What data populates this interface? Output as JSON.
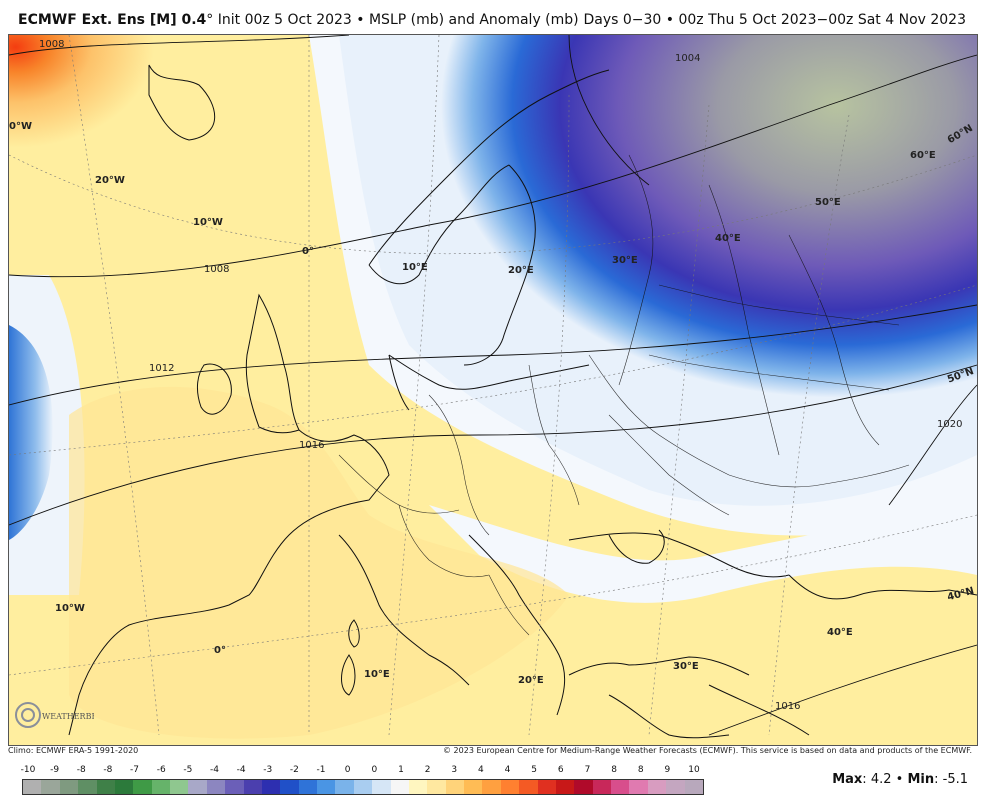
{
  "header": {
    "title_bold": "ECMWF Ext. Ens [M] 0.4",
    "title_rest": "° Init 00z 5 Oct 2023 • MSLP (mb) and Anomaly (mb)",
    "right": "Days 0−30 • 00z Thu 5 Oct 2023−00z Sat 4 Nov 2023"
  },
  "map": {
    "lon_labels": [
      "0°W",
      "20°W",
      "10°W",
      "0°",
      "10°E",
      "20°E",
      "30°E",
      "40°E",
      "50°E",
      "60°E",
      "60°N",
      "50°N",
      "40°N",
      "10°W",
      "0°",
      "10°E",
      "20°E",
      "30°E",
      "40°E"
    ],
    "contour_labels": [
      "1008",
      "1004",
      "1008",
      "1012",
      "1016",
      "1020",
      "1016"
    ]
  },
  "footer": {
    "climo": "Climo: ECMWF ERA-5 1991-2020",
    "copyright": "© 2023 European Centre for Medium-Range Weather Forecasts (ECMWF). This service is based on data and products of the ECMWF.",
    "logo_text": "WEATHERBELL",
    "max_label": "Max",
    "max_value": "4.2",
    "min_label": "Min",
    "min_value": "-5.1",
    "sep": "•"
  },
  "colorbar": {
    "ticks": [
      "-10",
      "-9",
      "-8",
      "-8",
      "-7",
      "-6",
      "-5",
      "-4",
      "-4",
      "-3",
      "-2",
      "-1",
      "0",
      "0",
      "1",
      "2",
      "3",
      "4",
      "4",
      "5",
      "6",
      "7",
      "8",
      "8",
      "9",
      "10"
    ],
    "colors": [
      "#b0b0b0",
      "#9aa69a",
      "#7f9a80",
      "#5f8f64",
      "#3f8048",
      "#2c7a3b",
      "#3f9a46",
      "#66b36a",
      "#8fc78f",
      "#a8a8c8",
      "#8c86c0",
      "#6b5fb8",
      "#4b3fae",
      "#2d2fb0",
      "#2050c8",
      "#2f73d8",
      "#4a95e4",
      "#7ab3ea",
      "#a9cdf0",
      "#d6e6f6",
      "#f6f6f6",
      "#fff6c0",
      "#ffe8a0",
      "#ffd37a",
      "#ffbc55",
      "#ffa040",
      "#ff8030",
      "#f45a24",
      "#e03020",
      "#c81818",
      "#b00a2a",
      "#c8285a",
      "#d84e8c",
      "#e07ab0",
      "#d89cc0",
      "#c4a6c0",
      "#b8a8bc"
    ]
  },
  "colors": {
    "positive_anomaly": "#ffe9a3",
    "negative_anomaly": "#3a3fc0",
    "strong_high": "#f46d1d",
    "low_center": "#a6b89a"
  }
}
